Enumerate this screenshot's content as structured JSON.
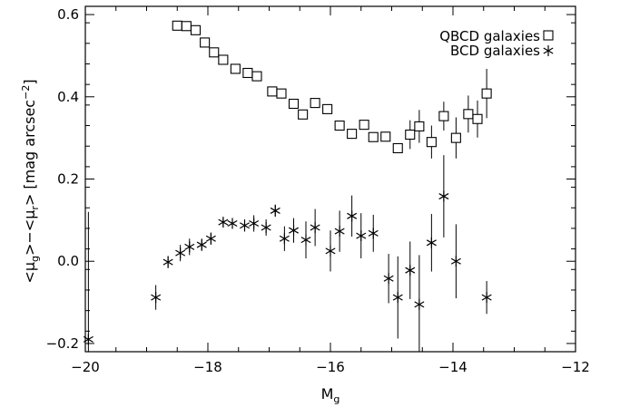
{
  "chart_data": {
    "type": "scatter",
    "title": "",
    "xlabel": "Mg",
    "ylabel": "<μg>−<μr> [mag arcsec−2]",
    "xlim": [
      -20,
      -12
    ],
    "ylim": [
      -0.22,
      0.62
    ],
    "xticks": [
      -20,
      -18,
      -16,
      -14,
      -12
    ],
    "xtick_labels": [
      "−20",
      "−18",
      "−16",
      "−14",
      "−12"
    ],
    "yticks": [
      -0.2,
      0.0,
      0.2,
      0.4,
      0.6
    ],
    "ytick_labels": [
      "−0.2",
      "0.0",
      "0.2",
      "0.4",
      "0.6"
    ],
    "grid": false,
    "legend_position": "top-right",
    "series": [
      {
        "name": "QBCD galaxies",
        "marker": "square",
        "points": [
          {
            "x": -18.5,
            "y": 0.573
          },
          {
            "x": -18.35,
            "y": 0.572
          },
          {
            "x": -18.2,
            "y": 0.562
          },
          {
            "x": -18.05,
            "y": 0.532
          },
          {
            "x": -17.9,
            "y": 0.508
          },
          {
            "x": -17.75,
            "y": 0.49
          },
          {
            "x": -17.55,
            "y": 0.468
          },
          {
            "x": -17.35,
            "y": 0.458
          },
          {
            "x": -17.2,
            "y": 0.45
          },
          {
            "x": -16.95,
            "y": 0.413
          },
          {
            "x": -16.8,
            "y": 0.408
          },
          {
            "x": -16.6,
            "y": 0.383
          },
          {
            "x": -16.45,
            "y": 0.357
          },
          {
            "x": -16.25,
            "y": 0.385
          },
          {
            "x": -16.05,
            "y": 0.37
          },
          {
            "x": -15.85,
            "y": 0.33
          },
          {
            "x": -15.65,
            "y": 0.31
          },
          {
            "x": -15.45,
            "y": 0.332
          },
          {
            "x": -15.3,
            "y": 0.302
          },
          {
            "x": -15.1,
            "y": 0.303
          },
          {
            "x": -14.9,
            "y": 0.275
          },
          {
            "x": -14.7,
            "y": 0.308,
            "err": 0.035
          },
          {
            "x": -14.55,
            "y": 0.328,
            "err": 0.04
          },
          {
            "x": -14.35,
            "y": 0.29,
            "err": 0.04
          },
          {
            "x": -14.15,
            "y": 0.353,
            "err": 0.035
          },
          {
            "x": -13.95,
            "y": 0.3,
            "err": 0.05
          },
          {
            "x": -13.75,
            "y": 0.358,
            "err": 0.045
          },
          {
            "x": -13.6,
            "y": 0.346,
            "err": 0.045
          },
          {
            "x": -13.45,
            "y": 0.408,
            "err": 0.06
          }
        ]
      },
      {
        "name": "BCD galaxies",
        "marker": "asterisk",
        "points": [
          {
            "x": -19.95,
            "y": -0.19,
            "err": 0.31
          },
          {
            "x": -18.85,
            "y": -0.088,
            "err": 0.03
          },
          {
            "x": -18.65,
            "y": -0.002,
            "err": 0.015
          },
          {
            "x": -18.45,
            "y": 0.02,
            "err": 0.02
          },
          {
            "x": -18.3,
            "y": 0.035,
            "err": 0.02
          },
          {
            "x": -18.1,
            "y": 0.04,
            "err": 0.015
          },
          {
            "x": -17.95,
            "y": 0.055,
            "err": 0.015
          },
          {
            "x": -17.75,
            "y": 0.095,
            "err": 0.01
          },
          {
            "x": -17.6,
            "y": 0.092,
            "err": 0.01
          },
          {
            "x": -17.4,
            "y": 0.087,
            "err": 0.015
          },
          {
            "x": -17.25,
            "y": 0.092,
            "err": 0.02
          },
          {
            "x": -17.05,
            "y": 0.082,
            "err": 0.02
          },
          {
            "x": -16.9,
            "y": 0.123,
            "err": 0.015
          },
          {
            "x": -16.75,
            "y": 0.055,
            "err": 0.03
          },
          {
            "x": -16.6,
            "y": 0.075,
            "err": 0.03
          },
          {
            "x": -16.4,
            "y": 0.052,
            "err": 0.045
          },
          {
            "x": -16.25,
            "y": 0.082,
            "err": 0.045
          },
          {
            "x": -16.0,
            "y": 0.025,
            "err": 0.05
          },
          {
            "x": -15.85,
            "y": 0.073,
            "err": 0.05
          },
          {
            "x": -15.65,
            "y": 0.11,
            "err": 0.05
          },
          {
            "x": -15.5,
            "y": 0.062,
            "err": 0.055
          },
          {
            "x": -15.3,
            "y": 0.068,
            "err": 0.045
          },
          {
            "x": -15.05,
            "y": -0.042,
            "err": 0.06
          },
          {
            "x": -14.9,
            "y": -0.088,
            "err": 0.1
          },
          {
            "x": -14.7,
            "y": -0.022,
            "err": 0.07
          },
          {
            "x": -14.55,
            "y": -0.105,
            "err": 0.12
          },
          {
            "x": -14.35,
            "y": 0.045,
            "err": 0.07
          },
          {
            "x": -14.15,
            "y": 0.158,
            "err": 0.1
          },
          {
            "x": -13.95,
            "y": 0.0,
            "err": 0.09
          },
          {
            "x": -13.45,
            "y": -0.088,
            "err": 0.04
          }
        ]
      }
    ]
  }
}
